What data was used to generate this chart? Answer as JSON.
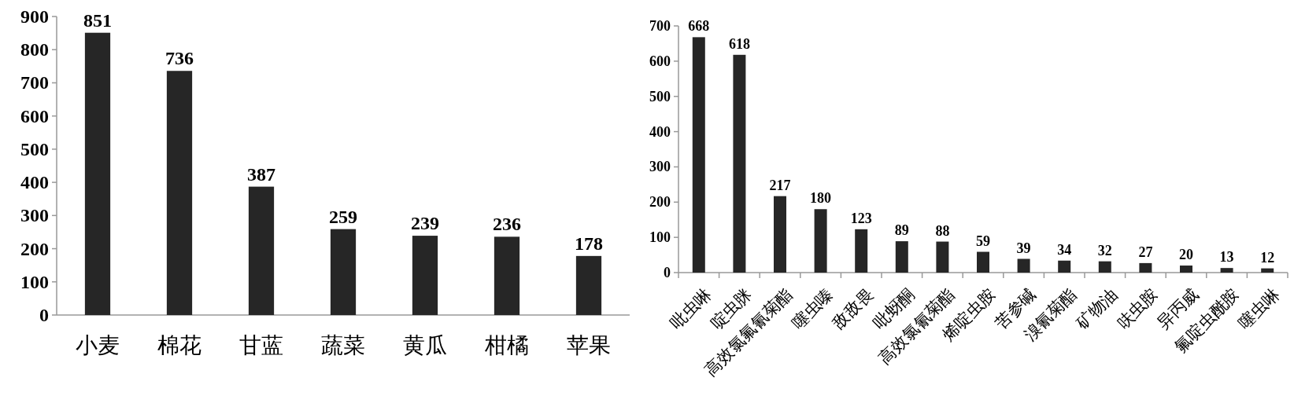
{
  "chart_data": [
    {
      "type": "bar",
      "categories": [
        "小麦",
        "棉花",
        "甘蓝",
        "蔬菜",
        "黄瓜",
        "柑橘",
        "苹果"
      ],
      "values": [
        851,
        736,
        387,
        259,
        239,
        236,
        178
      ],
      "color": "#262626",
      "data_labels": true,
      "ylim": [
        0,
        900
      ],
      "yticks": [
        0,
        100,
        200,
        300,
        400,
        500,
        600,
        700,
        800,
        900
      ]
    },
    {
      "type": "bar",
      "categories": [
        "吡虫啉",
        "啶虫脒",
        "高效氯氟氰菊酯",
        "噻虫嗪",
        "敌敌畏",
        "吡蚜酮",
        "高效氯氰菊酯",
        "烯啶虫胺",
        "苦参碱",
        "溴氰菊酯",
        "矿物油",
        "呋虫胺",
        "异丙威",
        "氟啶虫酰胺",
        "噻虫啉"
      ],
      "values": [
        668,
        618,
        217,
        180,
        123,
        89,
        88,
        59,
        39,
        34,
        32,
        27,
        20,
        13,
        12
      ],
      "color": "#262626",
      "data_labels": true,
      "ylim": [
        0,
        700
      ],
      "yticks": [
        0,
        100,
        200,
        300,
        400,
        500,
        600,
        700
      ]
    }
  ]
}
